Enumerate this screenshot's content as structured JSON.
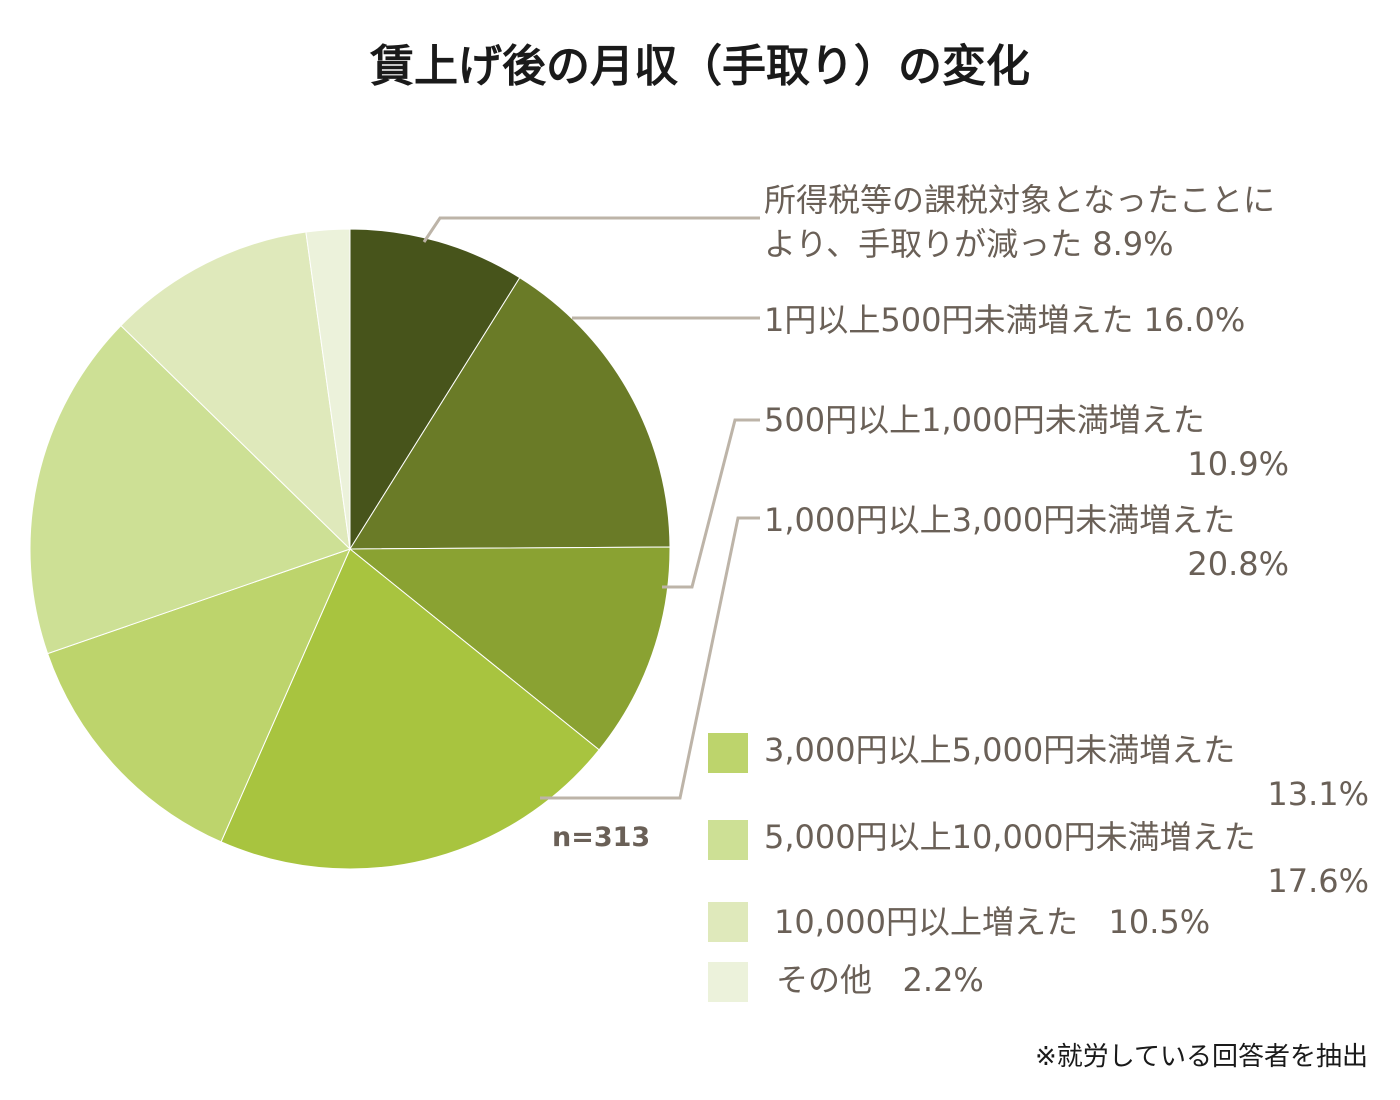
{
  "chart_data": {
    "type": "pie",
    "title": "賃上げ後の月収（手取り）の変化",
    "sample_size": "n=313",
    "note": "※就労している回答者を抽出",
    "slices": [
      {
        "line1": "所得税等の課税対象となったことに",
        "line2": "より、手取りが減った",
        "value_label": "8.9%",
        "value": 8.9,
        "color": "#47541b"
      },
      {
        "line1": "1円以上500円未満増えた",
        "line2": "",
        "value_label": "16.0%",
        "value": 16.0,
        "color": "#6a7b27"
      },
      {
        "line1": "500円以上1,000円未満増えた",
        "line2": "",
        "value_label": "10.9%",
        "value": 10.9,
        "color": "#8aa232"
      },
      {
        "line1": "1,000円以上3,000円未満増えた",
        "line2": "",
        "value_label": "20.8%",
        "value": 20.8,
        "color": "#a8c43f"
      },
      {
        "line1": "3,000円以上5,000円未満増えた",
        "line2": "",
        "value_label": "13.1%",
        "value": 13.1,
        "color": "#bdd46c"
      },
      {
        "line1": "5,000円以上10,000円未満増えた",
        "line2": "",
        "value_label": "17.6%",
        "value": 17.6,
        "color": "#cde095"
      },
      {
        "line1": "10,000円以上増えた",
        "line2": "",
        "value_label": "10.5%",
        "value": 10.5,
        "color": "#dfe9bb"
      },
      {
        "line1": "その他",
        "line2": "",
        "value_label": "2.2%",
        "value": 2.2,
        "color": "#ecf2db"
      }
    ]
  }
}
